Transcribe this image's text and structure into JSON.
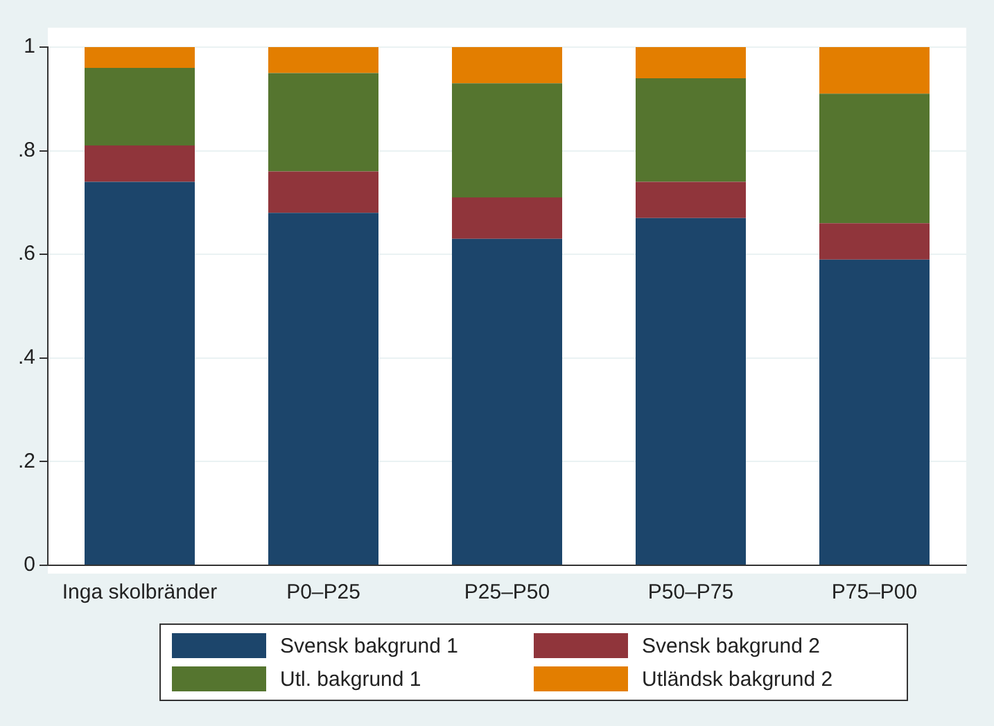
{
  "chart_data": {
    "type": "bar",
    "stacked": true,
    "categories": [
      "Inga skolbränder",
      "P0–P25",
      "P25–P50",
      "P50–P75",
      "P75–P00"
    ],
    "series": [
      {
        "name": "Svensk bakgrund 1",
        "color": "#1c456b",
        "values": [
          0.74,
          0.68,
          0.63,
          0.67,
          0.59
        ]
      },
      {
        "name": "Svensk bakgrund 2",
        "color": "#90353b",
        "values": [
          0.07,
          0.08,
          0.08,
          0.07,
          0.07
        ]
      },
      {
        "name": "Utl. bakgrund 1",
        "color": "#55752f",
        "values": [
          0.15,
          0.19,
          0.22,
          0.2,
          0.25
        ]
      },
      {
        "name": "Utländsk bakgrund 2",
        "color": "#e37e00",
        "values": [
          0.04,
          0.05,
          0.07,
          0.06,
          0.09
        ]
      }
    ],
    "ylim": [
      0,
      1
    ],
    "yticks": [
      0,
      {
        "value": 0.2,
        "label": ".2"
      },
      {
        "value": 0.4,
        "label": ".4"
      },
      {
        "value": 0.6,
        "label": ".6"
      },
      {
        "value": 0.8,
        "label": ".8"
      },
      1
    ],
    "grid": "y",
    "legend": "bottom"
  }
}
